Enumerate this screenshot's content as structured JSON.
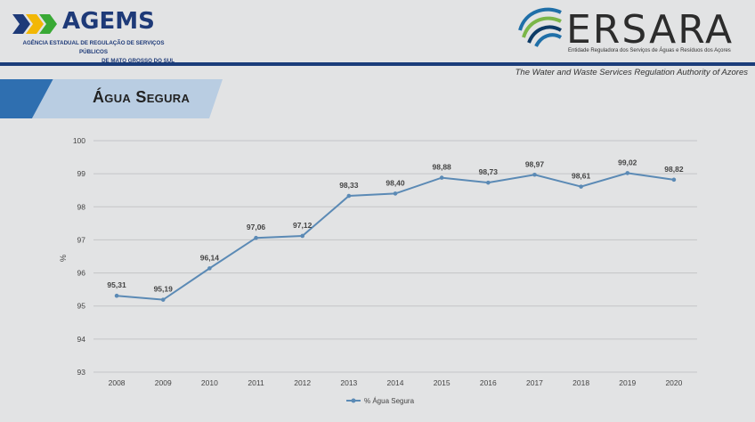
{
  "header": {
    "agems": {
      "name": "AGEMS",
      "subtitle_line1": "AGÊNCIA ESTADUAL DE REGULAÇÃO DE SERVIÇOS PÚBLICOS",
      "subtitle_line2": "DE MATO GROSSO DO SUL",
      "chevron_colors": [
        "#1e3a78",
        "#f2b705",
        "#39a935"
      ]
    },
    "ersara": {
      "name": "ERSARA",
      "subtitle": "Entidade Reguladora dos Serviços de Águas e Resíduos dos Açores",
      "mark_colors": [
        "#1f6fa8",
        "#7ab648",
        "#0d3b66"
      ]
    },
    "tagline": "The Water and Waste Services Regulation Authority of Azores",
    "rule_color": "#1b3d7a"
  },
  "banner": {
    "title": "Água Segura",
    "dark_color": "#2f6fb0",
    "light_color": "#b9cde2"
  },
  "chart_data": {
    "type": "line",
    "title": "",
    "xlabel": "",
    "ylabel": "%",
    "categories": [
      "2008",
      "2009",
      "2010",
      "2011",
      "2012",
      "2013",
      "2014",
      "2015",
      "2016",
      "2017",
      "2018",
      "2019",
      "2020"
    ],
    "series": [
      {
        "name": "% Água Segura",
        "values": [
          95.31,
          95.19,
          96.14,
          97.06,
          97.12,
          98.33,
          98.4,
          98.88,
          98.73,
          98.97,
          98.61,
          99.02,
          98.82
        ],
        "labels": [
          "95,31",
          "95,19",
          "96,14",
          "97,06",
          "97,12",
          "98,33",
          "98,40",
          "98,88",
          "98,73",
          "98,97",
          "98,61",
          "99,02",
          "98,82"
        ],
        "color": "#5b8ab5"
      }
    ],
    "ylim": [
      93,
      100
    ],
    "yticks": [
      "93",
      "94",
      "95",
      "96",
      "97",
      "98",
      "99",
      "100"
    ],
    "grid": true,
    "legend_position": "bottom-center"
  }
}
